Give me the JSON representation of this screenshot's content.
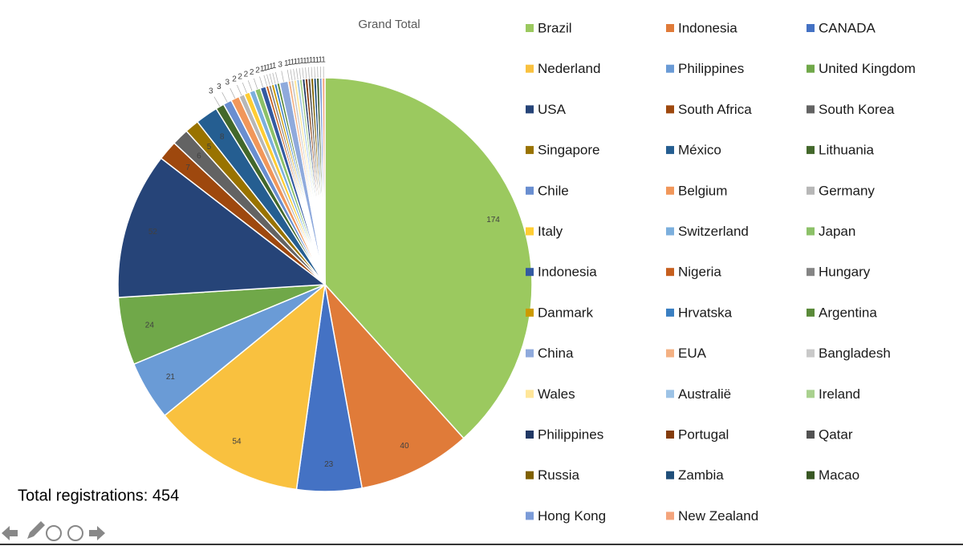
{
  "chart_data": {
    "type": "pie",
    "title": "Grand Total",
    "categories": [
      "Brazil",
      "Indonesia",
      "CANADA",
      "Nederland",
      "Philippines",
      "United Kingdom",
      "USA",
      "South Africa",
      "South Korea",
      "Singapore",
      "México",
      "Lithuania",
      "Chile",
      "Belgium",
      "Germany",
      "Italy",
      "Switzerland",
      "Japan",
      "Indonesia",
      "Nigeria",
      "Hungary",
      "Danmark",
      "Hrvatska",
      "Argentina",
      "China",
      "EUA",
      "Bangladesh",
      "Wales",
      "Australië",
      "Ireland",
      "Philippines",
      "Portugal",
      "Qatar",
      "Russia",
      "Zambia",
      "Macao",
      "Hong Kong",
      "New Zealand"
    ],
    "values": [
      174,
      40,
      23,
      54,
      21,
      24,
      52,
      7,
      6,
      5,
      8,
      3,
      3,
      3,
      2,
      2,
      2,
      2,
      2,
      1,
      1,
      1,
      1,
      1,
      3,
      1,
      1,
      1,
      1,
      1,
      1,
      1,
      1,
      1,
      1,
      1,
      1,
      1
    ],
    "colors": [
      "#9BC95F",
      "#E07B39",
      "#4472C4",
      "#F9C13F",
      "#6A9BD6",
      "#70A849",
      "#264478",
      "#9E480E",
      "#636363",
      "#997300",
      "#255E91",
      "#43682B",
      "#698ED0",
      "#F1975A",
      "#B7B7B7",
      "#FFCD33",
      "#7CAFDD",
      "#8CC168",
      "#335AA1",
      "#C65F1E",
      "#848484",
      "#CC9A00",
      "#3A7FC2",
      "#5A8A39",
      "#8FAADC",
      "#F4B183",
      "#C9C9C9",
      "#FFE699",
      "#9DC3E6",
      "#A9D18E",
      "#203864",
      "#843C0C",
      "#525252",
      "#7F6000",
      "#1F4E79",
      "#385723",
      "#7B9BD8",
      "#F4A47C"
    ],
    "legend": "right"
  },
  "footer_text": "Total registrations: 454"
}
